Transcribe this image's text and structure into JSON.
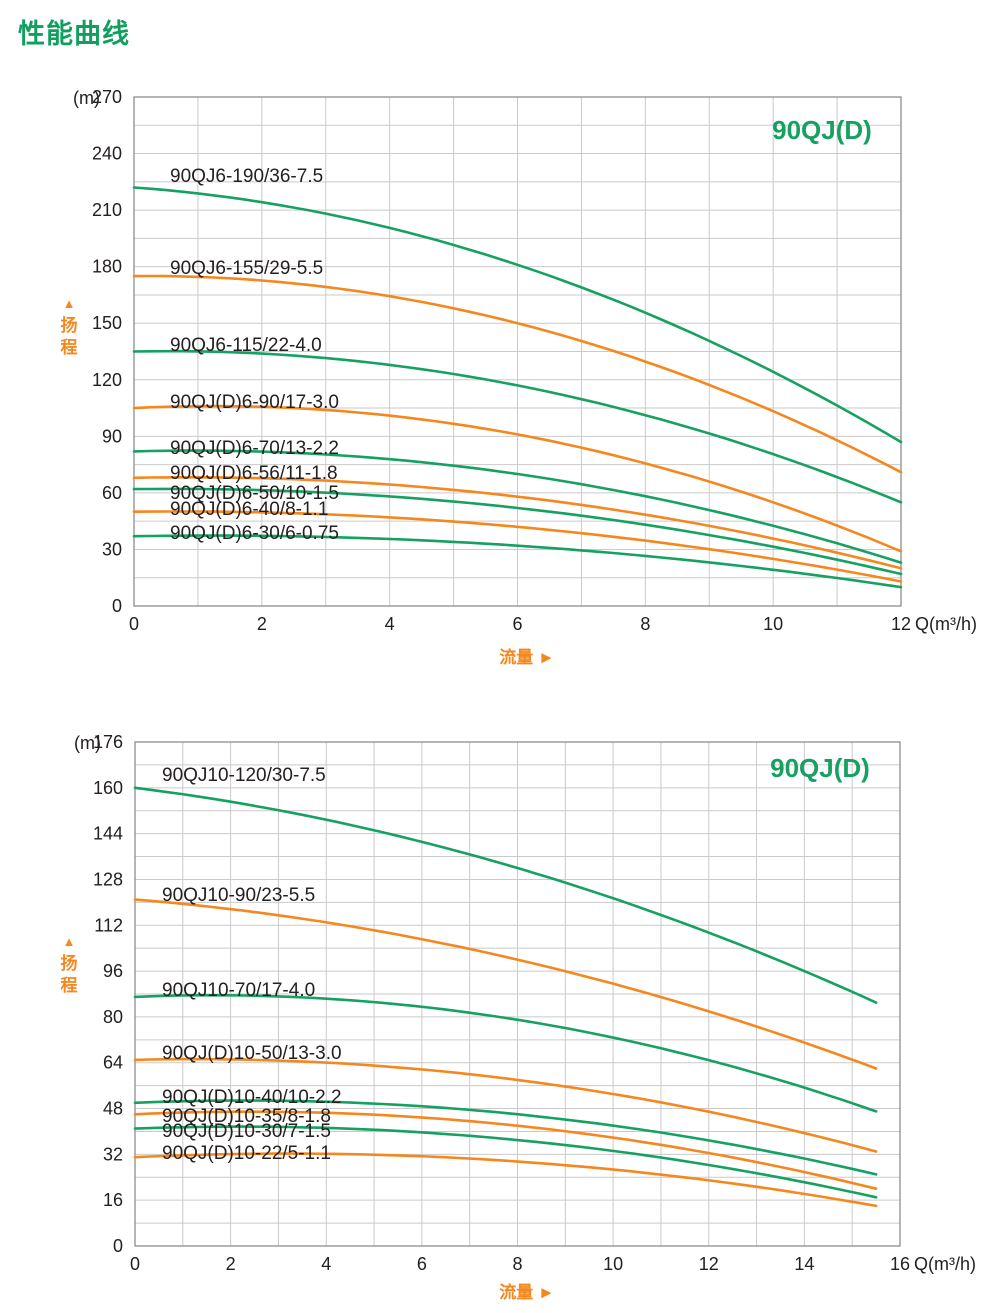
{
  "page_title": "性能曲线",
  "colors": {
    "green": "#16a162",
    "orange": "#f5871f",
    "grid": "#cbc9c9",
    "border": "#8f8d8d",
    "text": "#24201f"
  },
  "chart_data": [
    {
      "type": "line",
      "title": "90QJ(D)",
      "y_unit_label": "(m)",
      "x_unit_label": "Q(m³/h)",
      "xlabel": "流量",
      "xlabel_arrow": "►",
      "ylabel_arrow": "▲",
      "ylabel_chars": [
        "扬",
        "程"
      ],
      "xlim": [
        0,
        12
      ],
      "ylim": [
        0,
        270
      ],
      "x_tick_step": 2,
      "y_tick_step": 30,
      "x_grid_step": 1,
      "y_grid_step": 15,
      "grid": true,
      "series": [
        {
          "label": "90QJ6-190/36-7.5",
          "color": "green",
          "x": [
            0,
            6,
            12
          ],
          "y": [
            222,
            181,
            87
          ]
        },
        {
          "label": "90QJ6-155/29-5.5",
          "color": "orange",
          "x": [
            0,
            6,
            12
          ],
          "y": [
            175,
            150,
            71
          ]
        },
        {
          "label": "90QJ6-115/22-4.0",
          "color": "green",
          "x": [
            0,
            6,
            12
          ],
          "y": [
            135,
            117,
            55
          ]
        },
        {
          "label": "90QJ(D)6-90/17-3.0",
          "color": "orange",
          "x": [
            0,
            6,
            12
          ],
          "y": [
            105,
            91,
            29
          ]
        },
        {
          "label": "90QJ(D)6-70/13-2.2",
          "color": "green",
          "x": [
            0,
            6,
            12
          ],
          "y": [
            82,
            70,
            23
          ]
        },
        {
          "label": "90QJ(D)6-56/11-1.8",
          "color": "orange",
          "x": [
            0,
            6,
            12
          ],
          "y": [
            68,
            58,
            20
          ]
        },
        {
          "label": "90QJ(D)6-50/10-1.5",
          "color": "green",
          "x": [
            0,
            6,
            12
          ],
          "y": [
            62,
            52,
            17
          ]
        },
        {
          "label": "90QJ(D)6-40/8-1.1",
          "color": "orange",
          "x": [
            0,
            6,
            12
          ],
          "y": [
            50,
            42,
            13
          ]
        },
        {
          "label": "90QJ(D)6-30/6-0.75",
          "color": "green",
          "x": [
            0,
            6,
            12
          ],
          "y": [
            37,
            32,
            10
          ]
        }
      ]
    },
    {
      "type": "line",
      "title": "90QJ(D)",
      "y_unit_label": "(m)",
      "x_unit_label": "Q(m³/h)",
      "xlabel": "流量",
      "xlabel_arrow": "►",
      "ylabel_arrow": "▲",
      "ylabel_chars": [
        "扬",
        "程"
      ],
      "xlim": [
        0,
        16
      ],
      "ylim": [
        0,
        176
      ],
      "x_tick_step": 2,
      "y_tick_step": 16,
      "x_grid_step": 1,
      "y_grid_step": 8,
      "grid": true,
      "series": [
        {
          "label": "90QJ10-120/30-7.5",
          "color": "green",
          "x": [
            0,
            8,
            15.5
          ],
          "y": [
            160,
            132,
            85
          ]
        },
        {
          "label": "90QJ10-90/23-5.5",
          "color": "orange",
          "x": [
            0,
            8,
            15.5
          ],
          "y": [
            121,
            100,
            62
          ]
        },
        {
          "label": "90QJ10-70/17-4.0",
          "color": "green",
          "x": [
            0,
            8,
            15.5
          ],
          "y": [
            87,
            79,
            47
          ]
        },
        {
          "label": "90QJ(D)10-50/13-3.0",
          "color": "orange",
          "x": [
            0,
            8,
            15.5
          ],
          "y": [
            65,
            58,
            33
          ]
        },
        {
          "label": "90QJ(D)10-40/10-2.2",
          "color": "green",
          "x": [
            0,
            8,
            15.5
          ],
          "y": [
            50,
            46,
            25
          ]
        },
        {
          "label": "90QJ(D)10-35/8-1.8",
          "color": "orange",
          "x": [
            0,
            8,
            15.5
          ],
          "y": [
            46,
            42,
            20
          ]
        },
        {
          "label": "90QJ(D)10-30/7-1.5",
          "color": "green",
          "x": [
            0,
            8,
            15.5
          ],
          "y": [
            41,
            37,
            17
          ]
        },
        {
          "label": "90QJ(D)10-22/5-1.1",
          "color": "orange",
          "x": [
            0,
            8,
            15.5
          ],
          "y": [
            31,
            29.5,
            14
          ]
        }
      ]
    }
  ]
}
